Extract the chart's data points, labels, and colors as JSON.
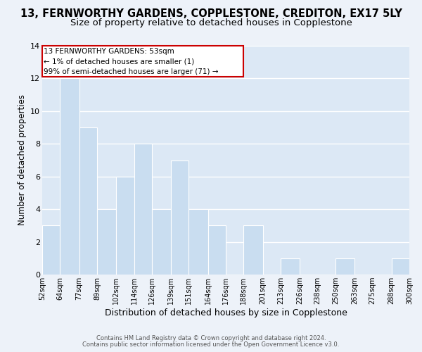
{
  "title1": "13, FERNWORTHY GARDENS, COPPLESTONE, CREDITON, EX17 5LY",
  "title2": "Size of property relative to detached houses in Copplestone",
  "xlabel": "Distribution of detached houses by size in Copplestone",
  "ylabel": "Number of detached properties",
  "bar_edges": [
    52,
    64,
    77,
    89,
    102,
    114,
    126,
    139,
    151,
    164,
    176,
    188,
    201,
    213,
    226,
    238,
    250,
    263,
    275,
    288,
    300
  ],
  "bar_heights": [
    3,
    12,
    9,
    4,
    6,
    8,
    4,
    7,
    4,
    3,
    0,
    3,
    0,
    1,
    0,
    0,
    1,
    0,
    0,
    1
  ],
  "bar_color": "#c9ddf0",
  "bar_edge_color": "#ffffff",
  "tick_labels": [
    "52sqm",
    "64sqm",
    "77sqm",
    "89sqm",
    "102sqm",
    "114sqm",
    "126sqm",
    "139sqm",
    "151sqm",
    "164sqm",
    "176sqm",
    "188sqm",
    "201sqm",
    "213sqm",
    "226sqm",
    "238sqm",
    "250sqm",
    "263sqm",
    "275sqm",
    "288sqm",
    "300sqm"
  ],
  "ylim": [
    0,
    14
  ],
  "yticks": [
    0,
    2,
    4,
    6,
    8,
    10,
    12,
    14
  ],
  "ann_line1": "13 FERNWORTHY GARDENS: 53sqm",
  "ann_line2": "← 1% of detached houses are smaller (1)",
  "ann_line3": "99% of semi-detached houses are larger (71) →",
  "annotation_box_color": "#ffffff",
  "annotation_box_edge": "#cc0000",
  "footer1": "Contains HM Land Registry data © Crown copyright and database right 2024.",
  "footer2": "Contains public sector information licensed under the Open Government Licence v3.0.",
  "bg_color": "#edf2f9",
  "plot_bg_color": "#dce8f5",
  "grid_color": "#ffffff",
  "title1_fontsize": 10.5,
  "title2_fontsize": 9.5,
  "xlabel_fontsize": 9,
  "ylabel_fontsize": 8.5,
  "tick_fontsize": 7,
  "ytick_fontsize": 8
}
